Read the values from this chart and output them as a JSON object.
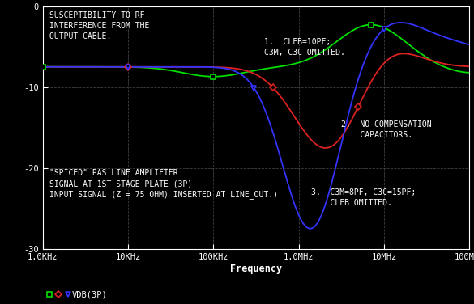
{
  "bg_color": "#000000",
  "text_color": "#ffffff",
  "grid_color": "#4a4a4a",
  "xlabel": "Frequency",
  "ylim": [
    -30,
    0
  ],
  "xmin_hz": 1000,
  "xmax_hz": 100000000.0,
  "yticks": [
    0,
    -10,
    -20,
    -30
  ],
  "ytick_labels": [
    "0",
    "-10",
    "-20",
    "-30"
  ],
  "annotation1": "SUSCEPTIBILITY TO RF\nINTERFERENCE FROM THE\nOUTPUT CABLE.",
  "annotation2": "1.  CLFB=10PF;\nC3M, C3C OMITTED.",
  "annotation3": "2.  NO COMPENSATION\n    CAPACITORS.",
  "annotation4": "3.  C3M=8PF, C3C=15PF;\n    CLFB OMITTED.",
  "annotation5": "\"SPICED\" PAS LINE AMPLIFIER\nSIGNAL AT 1ST STAGE PLATE (3P)\nINPUT SIGNAL (Z = 75 OHM) INSERTED AT LINE_OUT.)",
  "curve1_color": "#00dd00",
  "curve2_color": "#dd2222",
  "curve3_color": "#3333ff",
  "legend_label": "VDB(3P)",
  "xtick_labels": [
    "1.0KHz",
    "10KHz",
    "100KHz",
    "1.0MHz",
    "10MHz",
    "100MHz"
  ],
  "xtick_values": [
    1000,
    10000,
    100000,
    1000000,
    10000000,
    100000000
  ],
  "marker_freqs1": [
    1000,
    100000,
    7000000
  ],
  "marker_freqs2": [
    10000,
    500000,
    5000000
  ],
  "marker_freqs3": [
    10000,
    300000,
    10000000
  ]
}
